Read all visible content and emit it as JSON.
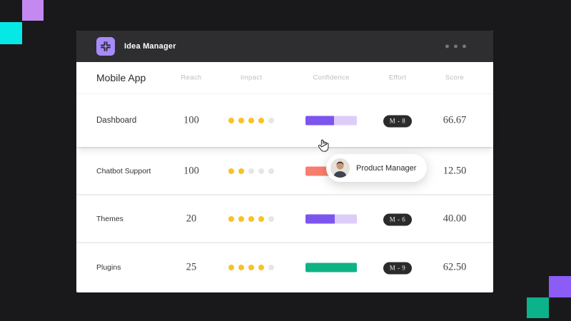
{
  "app": {
    "title": "Idea Manager",
    "window_menu": "more-options"
  },
  "decor": {
    "top_left_lilac": "#C489F1",
    "top_left_cyan": "#06E8E6",
    "bottom_right_purple": "#8B5CF6",
    "bottom_right_green": "#0CB289"
  },
  "board": {
    "title": "Mobile App",
    "columns": [
      "Reach",
      "Impact",
      "Confidence",
      "Effort",
      "Score"
    ],
    "impact_max": 5,
    "rows": [
      {
        "name": "Dashboard",
        "reach": "100",
        "impact": 4,
        "confidence": {
          "pct": 55,
          "fill": "#7C55EE",
          "track": "#DCCDF8"
        },
        "effort": "M - 8",
        "score": "66.67"
      },
      {
        "name": "Chatbot Support",
        "reach": "100",
        "impact": 2,
        "confidence": {
          "pct": 45,
          "fill": "#F87E6D",
          "track": "#FBD9D3"
        },
        "effort": "",
        "score": "12.50"
      },
      {
        "name": "Themes",
        "reach": "20",
        "impact": 4,
        "confidence": {
          "pct": 57,
          "fill": "#7C55EE",
          "track": "#DCCDF8"
        },
        "effort": "M - 6",
        "score": "40.00"
      },
      {
        "name": "Plugins",
        "reach": "25",
        "impact": 4,
        "confidence": {
          "pct": 100,
          "fill": "#0EB384",
          "track": "#D7F3E9"
        },
        "effort": "M - 9",
        "score": "62.50"
      }
    ]
  },
  "dot_colors": {
    "active": "#FBC125",
    "inactive": "#E6E6E6"
  },
  "tooltip": {
    "label": "Product Manager",
    "avatar": "person-photo"
  },
  "cursor": "hand-pointer"
}
